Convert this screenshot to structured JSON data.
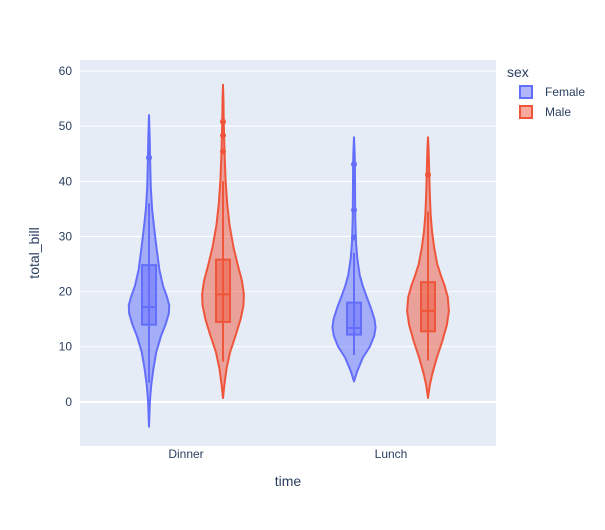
{
  "chart_data": {
    "type": "violin",
    "xlabel": "time",
    "ylabel": "total_bill",
    "categories": [
      "Dinner",
      "Lunch"
    ],
    "ylim": [
      -8,
      62
    ],
    "y_ticks": [
      0,
      10,
      20,
      30,
      40,
      50,
      60
    ],
    "grid": true,
    "legend": {
      "title": "sex",
      "placement": "top-right"
    },
    "series": [
      {
        "name": "Female",
        "color": "#636efa",
        "groups": [
          {
            "category": "Dinner",
            "range": [
              -4.5,
              52
            ],
            "whisker": [
              3.5,
              36
            ],
            "q1": 14,
            "median": 17.2,
            "q3": 24.8,
            "outliers": [
              44.3
            ],
            "profile": [
              [
                -4.5,
                0
              ],
              [
                0,
                0.04
              ],
              [
                3,
                0.1
              ],
              [
                6,
                0.2
              ],
              [
                9,
                0.33
              ],
              [
                12,
                0.55
              ],
              [
                14,
                0.75
              ],
              [
                16,
                0.9
              ],
              [
                17.5,
                0.92
              ],
              [
                19,
                0.82
              ],
              [
                21,
                0.64
              ],
              [
                24,
                0.47
              ],
              [
                28,
                0.34
              ],
              [
                32,
                0.22
              ],
              [
                35,
                0.14
              ],
              [
                39,
                0.08
              ],
              [
                44,
                0.05
              ],
              [
                48,
                0.03
              ],
              [
                52,
                0
              ]
            ]
          },
          {
            "category": "Lunch",
            "range": [
              3.7,
              48
            ],
            "whisker": [
              8.5,
              27
            ],
            "q1": 12.2,
            "median": 13.4,
            "q3": 18,
            "outliers": [
              29.8,
              34.8,
              43.1
            ],
            "profile": [
              [
                3.7,
                0
              ],
              [
                5.5,
                0.14
              ],
              [
                8,
                0.4
              ],
              [
                10,
                0.72
              ],
              [
                12,
                0.92
              ],
              [
                13.5,
                0.98
              ],
              [
                15,
                0.93
              ],
              [
                17,
                0.77
              ],
              [
                19,
                0.58
              ],
              [
                21,
                0.4
              ],
              [
                23,
                0.26
              ],
              [
                26,
                0.15
              ],
              [
                29,
                0.09
              ],
              [
                33,
                0.06
              ],
              [
                37,
                0.05
              ],
              [
                40,
                0.045
              ],
              [
                43,
                0.04
              ],
              [
                45,
                0.03
              ],
              [
                48,
                0
              ]
            ]
          }
        ]
      },
      {
        "name": "Male",
        "color": "#ef553b",
        "groups": [
          {
            "category": "Dinner",
            "range": [
              0.7,
              57.5
            ],
            "whisker": [
              7.3,
              40
            ],
            "q1": 14.5,
            "median": 19.5,
            "q3": 25.8,
            "outliers": [
              45.4,
              48.3,
              50.8
            ],
            "profile": [
              [
                0.7,
                0
              ],
              [
                3,
                0.06
              ],
              [
                6,
                0.16
              ],
              [
                9,
                0.32
              ],
              [
                12,
                0.57
              ],
              [
                15,
                0.8
              ],
              [
                17.5,
                0.93
              ],
              [
                19.5,
                0.95
              ],
              [
                22,
                0.86
              ],
              [
                25,
                0.66
              ],
              [
                28,
                0.48
              ],
              [
                32,
                0.3
              ],
              [
                36,
                0.19
              ],
              [
                40,
                0.12
              ],
              [
                44,
                0.08
              ],
              [
                48,
                0.05
              ],
              [
                52,
                0.03
              ],
              [
                55,
                0.02
              ],
              [
                57.5,
                0
              ]
            ]
          },
          {
            "category": "Lunch",
            "range": [
              0.7,
              48
            ],
            "whisker": [
              7.5,
              34.5
            ],
            "q1": 12.8,
            "median": 16.5,
            "q3": 21.7,
            "outliers": [
              41.2
            ],
            "profile": [
              [
                0.7,
                0
              ],
              [
                3,
                0.08
              ],
              [
                5,
                0.19
              ],
              [
                8,
                0.4
              ],
              [
                11,
                0.65
              ],
              [
                14,
                0.86
              ],
              [
                16.5,
                0.95
              ],
              [
                19,
                0.9
              ],
              [
                21,
                0.76
              ],
              [
                23,
                0.58
              ],
              [
                25,
                0.42
              ],
              [
                28,
                0.28
              ],
              [
                31,
                0.18
              ],
              [
                34,
                0.12
              ],
              [
                38,
                0.08
              ],
              [
                41,
                0.06
              ],
              [
                44,
                0.04
              ],
              [
                46,
                0.025
              ],
              [
                48,
                0
              ]
            ]
          }
        ]
      }
    ]
  }
}
